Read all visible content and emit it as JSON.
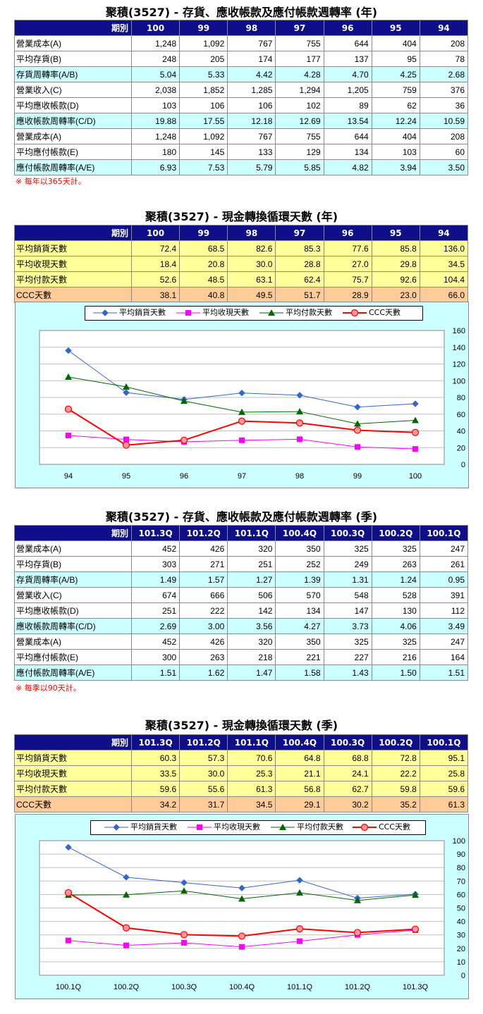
{
  "colors": {
    "header_bg": "#0f0f8a",
    "header_text": "#ffffff",
    "row_cyan": "#ccffff",
    "row_yellow": "#ffff99",
    "row_peach": "#ffcc99",
    "chart_bg": "#ccffff",
    "series_sales": "#3366cc",
    "series_receivable": "#ff00ff",
    "series_payable": "#006600",
    "series_ccc": "#ff0000",
    "note": "#ff0000"
  },
  "legend": [
    "平均銷貨天數",
    "平均收現天數",
    "平均付款天數",
    "CCC天數"
  ],
  "section1": {
    "title": "聚積(3527) - 存貨、應收帳款及應付帳款週轉率 (年)",
    "header_label": "期別",
    "periods": [
      "100",
      "99",
      "98",
      "97",
      "96",
      "95",
      "94"
    ],
    "rows": [
      {
        "label": "營業成本(A)",
        "style": "white",
        "values": [
          "1,248",
          "1,092",
          "767",
          "755",
          "644",
          "404",
          "208"
        ]
      },
      {
        "label": "平均存貨(B)",
        "style": "white",
        "values": [
          "248",
          "205",
          "174",
          "177",
          "137",
          "95",
          "78"
        ]
      },
      {
        "label": "存貨周轉率(A/B)",
        "style": "cyan",
        "values": [
          "5.04",
          "5.33",
          "4.42",
          "4.28",
          "4.70",
          "4.25",
          "2.68"
        ]
      },
      {
        "label": "營業收入(C)",
        "style": "white",
        "values": [
          "2,038",
          "1,852",
          "1,285",
          "1,294",
          "1,205",
          "759",
          "376"
        ]
      },
      {
        "label": "平均應收帳款(D)",
        "style": "white",
        "values": [
          "103",
          "106",
          "106",
          "102",
          "89",
          "62",
          "36"
        ]
      },
      {
        "label": "應收帳款周轉率(C/D)",
        "style": "cyan",
        "values": [
          "19.88",
          "17.55",
          "12.18",
          "12.69",
          "13.54",
          "12.24",
          "10.59"
        ]
      },
      {
        "label": "營業成本(A)",
        "style": "white",
        "values": [
          "1,248",
          "1,092",
          "767",
          "755",
          "644",
          "404",
          "208"
        ]
      },
      {
        "label": "平均應付帳款(E)",
        "style": "white",
        "values": [
          "180",
          "145",
          "133",
          "129",
          "134",
          "103",
          "60"
        ]
      },
      {
        "label": "應付帳款周轉率(A/E)",
        "style": "cyan",
        "values": [
          "6.93",
          "7.53",
          "5.79",
          "5.85",
          "4.82",
          "3.94",
          "3.50"
        ]
      }
    ],
    "note": "※ 每年以365天計。"
  },
  "section2": {
    "title": "聚積(3527) - 現金轉換循環天數 (年)",
    "header_label": "期別",
    "periods": [
      "100",
      "99",
      "98",
      "97",
      "96",
      "95",
      "94"
    ],
    "rows": [
      {
        "label": "平均銷貨天數",
        "style": "yellow",
        "values": [
          "72.4",
          "68.5",
          "82.6",
          "85.3",
          "77.6",
          "85.8",
          "136.0"
        ]
      },
      {
        "label": "平均收現天數",
        "style": "yellow",
        "values": [
          "18.4",
          "20.8",
          "30.0",
          "28.8",
          "27.0",
          "29.8",
          "34.5"
        ]
      },
      {
        "label": "平均付款天數",
        "style": "yellow",
        "values": [
          "52.6",
          "48.5",
          "63.1",
          "62.4",
          "75.7",
          "92.6",
          "104.4"
        ]
      },
      {
        "label": "CCC天數",
        "style": "peach",
        "values": [
          "38.1",
          "40.8",
          "49.5",
          "51.7",
          "28.9",
          "23.0",
          "66.0"
        ]
      }
    ]
  },
  "section3": {
    "title": "聚積(3527) - 存貨、應收帳款及應付帳款週轉率 (季)",
    "header_label": "期別",
    "periods": [
      "101.3Q",
      "101.2Q",
      "101.1Q",
      "100.4Q",
      "100.3Q",
      "100.2Q",
      "100.1Q"
    ],
    "rows": [
      {
        "label": "營業成本(A)",
        "style": "white",
        "values": [
          "452",
          "426",
          "320",
          "350",
          "325",
          "325",
          "247"
        ]
      },
      {
        "label": "平均存貨(B)",
        "style": "white",
        "values": [
          "303",
          "271",
          "251",
          "252",
          "249",
          "263",
          "261"
        ]
      },
      {
        "label": "存貨周轉率(A/B)",
        "style": "cyan",
        "values": [
          "1.49",
          "1.57",
          "1.27",
          "1.39",
          "1.31",
          "1.24",
          "0.95"
        ]
      },
      {
        "label": "營業收入(C)",
        "style": "white",
        "values": [
          "674",
          "666",
          "506",
          "570",
          "548",
          "528",
          "391"
        ]
      },
      {
        "label": "平均應收帳款(D)",
        "style": "white",
        "values": [
          "251",
          "222",
          "142",
          "134",
          "147",
          "130",
          "112"
        ]
      },
      {
        "label": "應收帳款周轉率(C/D)",
        "style": "cyan",
        "values": [
          "2.69",
          "3.00",
          "3.56",
          "4.27",
          "3.73",
          "4.06",
          "3.49"
        ]
      },
      {
        "label": "營業成本(A)",
        "style": "white",
        "values": [
          "452",
          "426",
          "320",
          "350",
          "325",
          "325",
          "247"
        ]
      },
      {
        "label": "平均應付帳款(E)",
        "style": "white",
        "values": [
          "300",
          "263",
          "218",
          "221",
          "227",
          "216",
          "164"
        ]
      },
      {
        "label": "應付帳款周轉率(A/E)",
        "style": "cyan",
        "values": [
          "1.51",
          "1.62",
          "1.47",
          "1.58",
          "1.43",
          "1.50",
          "1.51"
        ]
      }
    ],
    "note": "※ 每季以90天計。"
  },
  "section4": {
    "title": "聚積(3527) - 現金轉換循環天數 (季)",
    "header_label": "期別",
    "periods": [
      "101.3Q",
      "101.2Q",
      "101.1Q",
      "100.4Q",
      "100.3Q",
      "100.2Q",
      "100.1Q"
    ],
    "rows": [
      {
        "label": "平均銷貨天數",
        "style": "yellow",
        "values": [
          "60.3",
          "57.3",
          "70.6",
          "64.8",
          "68.8",
          "72.8",
          "95.1"
        ]
      },
      {
        "label": "平均收現天數",
        "style": "yellow",
        "values": [
          "33.5",
          "30.0",
          "25.3",
          "21.1",
          "24.1",
          "22.2",
          "25.8"
        ]
      },
      {
        "label": "平均付款天數",
        "style": "yellow",
        "values": [
          "59.6",
          "55.6",
          "61.3",
          "56.8",
          "62.7",
          "59.8",
          "59.6"
        ]
      },
      {
        "label": "CCC天數",
        "style": "peach",
        "values": [
          "34.2",
          "31.7",
          "34.5",
          "29.1",
          "30.2",
          "35.2",
          "61.3"
        ]
      }
    ]
  },
  "chart_data": [
    {
      "type": "line",
      "x": [
        "94",
        "95",
        "96",
        "97",
        "98",
        "99",
        "100"
      ],
      "ylim": [
        0,
        160
      ],
      "yticks": [
        0,
        20,
        40,
        60,
        80,
        100,
        120,
        140,
        160
      ],
      "grid": true,
      "legend_position": "top",
      "series": [
        {
          "name": "平均銷貨天數",
          "values": [
            136.0,
            85.8,
            77.6,
            85.3,
            82.6,
            68.5,
            72.4
          ]
        },
        {
          "name": "平均收現天數",
          "values": [
            34.5,
            29.8,
            27.0,
            28.8,
            30.0,
            20.8,
            18.4
          ]
        },
        {
          "name": "平均付款天數",
          "values": [
            104.4,
            92.6,
            75.7,
            62.4,
            63.1,
            48.5,
            52.6
          ]
        },
        {
          "name": "CCC天數",
          "values": [
            66.0,
            23.0,
            28.9,
            51.7,
            49.5,
            40.8,
            38.1
          ]
        }
      ]
    },
    {
      "type": "line",
      "x": [
        "100.1Q",
        "100.2Q",
        "100.3Q",
        "100.4Q",
        "101.1Q",
        "101.2Q",
        "101.3Q"
      ],
      "ylim": [
        0,
        100
      ],
      "yticks": [
        0,
        10,
        20,
        30,
        40,
        50,
        60,
        70,
        80,
        90,
        100
      ],
      "grid": true,
      "legend_position": "top",
      "series": [
        {
          "name": "平均銷貨天數",
          "values": [
            95.1,
            72.8,
            68.8,
            64.8,
            70.6,
            57.3,
            60.3
          ]
        },
        {
          "name": "平均收現天數",
          "values": [
            25.8,
            22.2,
            24.1,
            21.1,
            25.3,
            30.0,
            33.5
          ]
        },
        {
          "name": "平均付款天數",
          "values": [
            59.6,
            59.8,
            62.7,
            56.8,
            61.3,
            55.6,
            59.6
          ]
        },
        {
          "name": "CCC天數",
          "values": [
            61.3,
            35.2,
            30.2,
            29.1,
            34.5,
            31.7,
            34.2
          ]
        }
      ]
    }
  ]
}
